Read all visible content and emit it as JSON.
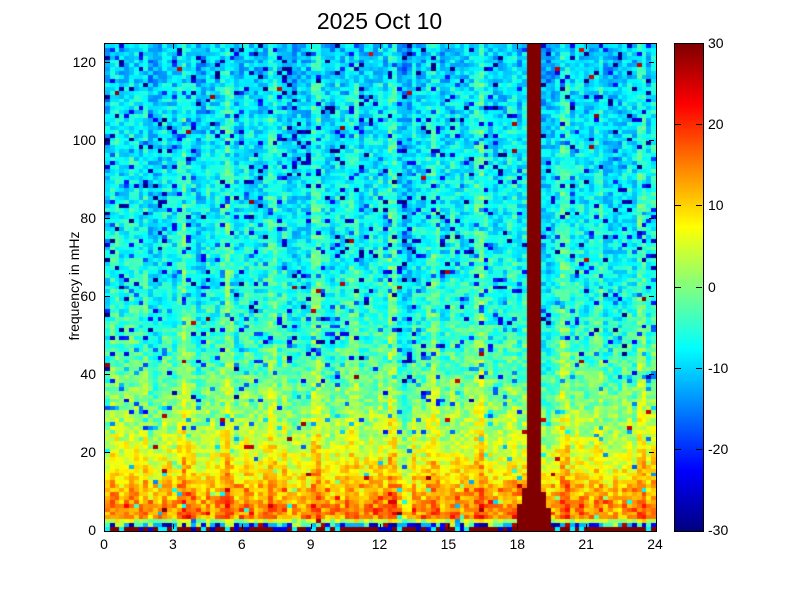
{
  "chart_data": {
    "type": "heatmap",
    "title": "2025 Oct 10",
    "xlabel": "",
    "ylabel": "frequency in mHz",
    "xlim": [
      0,
      24
    ],
    "ylim": [
      0,
      125
    ],
    "x_ticks": [
      0,
      3,
      6,
      9,
      12,
      15,
      18,
      21,
      24
    ],
    "y_ticks": [
      0,
      20,
      40,
      60,
      80,
      100,
      120
    ],
    "value_range_db": [
      -30,
      30
    ],
    "colorbar_ticks": [
      30,
      20,
      10,
      0,
      -10,
      -20,
      -30
    ],
    "colormap": "jet",
    "colormap_key_colors": {
      "min_-30": "#000080",
      "-20": "#0028ff",
      "-10": "#00d5ff",
      "0": "#84ff7b",
      "10": "#ffe600",
      "20": "#ff2b00",
      "max_30": "#800000"
    },
    "grid": {
      "cols": 115,
      "rows": 125
    },
    "freq_profile_db": [
      [
        0,
        29
      ],
      [
        1.5,
        -16
      ],
      [
        3,
        13
      ],
      [
        6,
        14
      ],
      [
        10,
        11
      ],
      [
        14,
        9
      ],
      [
        18,
        7
      ],
      [
        22,
        4.5
      ],
      [
        27,
        2.5
      ],
      [
        32,
        0.5
      ],
      [
        38,
        -1.5
      ],
      [
        45,
        -3.5
      ],
      [
        55,
        -5.5
      ],
      [
        70,
        -7
      ],
      [
        90,
        -8
      ],
      [
        110,
        -9
      ],
      [
        125,
        -9.5
      ]
    ],
    "noise_db": 4.5,
    "features": {
      "saturated_stripe": {
        "hour": 18.65,
        "width_hours": 0.45,
        "value_db": 30,
        "flare_below_mhz": 14
      },
      "enhancement_streaks": [
        {
          "hour": 1.25,
          "db": 5
        },
        {
          "hour": 3.4,
          "db": 4
        },
        {
          "hour": 5.35,
          "db": 6
        },
        {
          "hour": 7.3,
          "db": 5
        },
        {
          "hour": 9.2,
          "db": 5
        },
        {
          "hour": 10.9,
          "db": 4
        },
        {
          "hour": 12.45,
          "db": 6
        },
        {
          "hour": 14.3,
          "db": 5
        },
        {
          "hour": 16.35,
          "db": 6
        },
        {
          "hour": 20.05,
          "db": 8
        },
        {
          "hour": 21.5,
          "db": 5
        },
        {
          "hour": 23.3,
          "db": 6
        }
      ],
      "quiet_streaks": [
        {
          "hour": 2.1,
          "db": -3
        },
        {
          "hour": 13.1,
          "db": -3
        },
        {
          "hour": 19.3,
          "db": -3.5
        },
        {
          "hour": 21.0,
          "db": -3
        },
        {
          "hour": 22.4,
          "db": -3.5
        }
      ],
      "speckles": {
        "cold_prob_high_freq": 0.1,
        "cold_prob_mid_freq": 0.07,
        "cold_prob_low_freq": 0.03,
        "hot_prob": 0.004
      },
      "bottom_rows": "0 mHz row mixed saturated dark red / dark blue; 1-2 mHz row mostly blue"
    }
  }
}
